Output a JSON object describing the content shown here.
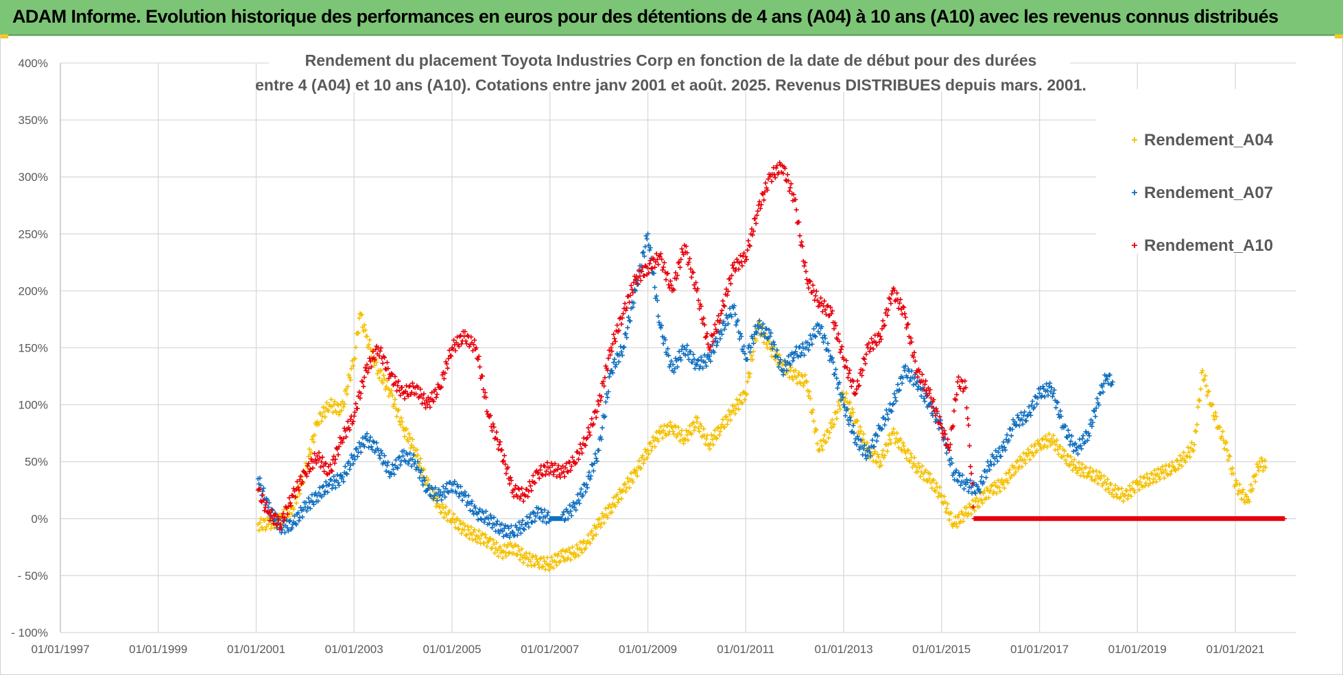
{
  "header": {
    "title": "ADAM Informe. Evolution historique des performances en euros pour des détentions de 4 ans (A04) à 10 ans (A10) avec les revenus connus distribués"
  },
  "chart_data": {
    "type": "scatter",
    "title_line1": "Rendement du placement Toyota Industries Corp en fonction de la date de début pour des durées",
    "title_line2": "entre 4 (A04) et 10 ans (A10). Cotations entre janv 2001 et août. 2025. Revenus DISTRIBUES depuis mars. 2001.",
    "xlabel": "",
    "ylabel": "",
    "xlim": [
      "1997-01-01",
      "2022-04-01"
    ],
    "ylim": [
      -100,
      400
    ],
    "x_ticks": [
      "01/01/1997",
      "01/01/1999",
      "01/01/2001",
      "01/01/2003",
      "01/01/2005",
      "01/01/2007",
      "01/01/2009",
      "01/01/2011",
      "01/01/2013",
      "01/01/2015",
      "01/01/2017",
      "01/01/2019",
      "01/01/2021"
    ],
    "y_ticks": [
      "- 100%",
      "- 50%",
      "0%",
      "50%",
      "100%",
      "150%",
      "200%",
      "250%",
      "300%",
      "350%",
      "400%"
    ],
    "grid": true,
    "legend_position": "top-right",
    "marker": "+",
    "series": [
      {
        "name": "Rendement_A04",
        "color": "#f5c000",
        "points": [
          [
            "2001-01-15",
            -5
          ],
          [
            "2001-04-01",
            -5
          ],
          [
            "2001-07-01",
            0
          ],
          [
            "2001-10-01",
            10
          ],
          [
            "2002-01-01",
            40
          ],
          [
            "2002-04-01",
            85
          ],
          [
            "2002-07-01",
            100
          ],
          [
            "2002-10-01",
            95
          ],
          [
            "2003-01-01",
            140
          ],
          [
            "2003-02-15",
            180
          ],
          [
            "2003-04-01",
            160
          ],
          [
            "2003-07-01",
            130
          ],
          [
            "2003-10-01",
            110
          ],
          [
            "2004-01-01",
            80
          ],
          [
            "2004-04-01",
            60
          ],
          [
            "2004-07-01",
            30
          ],
          [
            "2004-10-01",
            10
          ],
          [
            "2005-01-01",
            0
          ],
          [
            "2005-04-01",
            -10
          ],
          [
            "2005-07-01",
            -15
          ],
          [
            "2005-10-01",
            -20
          ],
          [
            "2006-01-01",
            -30
          ],
          [
            "2006-04-01",
            -25
          ],
          [
            "2006-07-01",
            -35
          ],
          [
            "2006-10-01",
            -38
          ],
          [
            "2007-01-01",
            -40
          ],
          [
            "2007-04-01",
            -33
          ],
          [
            "2007-07-01",
            -30
          ],
          [
            "2007-10-01",
            -22
          ],
          [
            "2008-01-01",
            -5
          ],
          [
            "2008-04-01",
            10
          ],
          [
            "2008-07-01",
            25
          ],
          [
            "2008-10-01",
            40
          ],
          [
            "2009-01-01",
            60
          ],
          [
            "2009-04-01",
            75
          ],
          [
            "2009-07-01",
            80
          ],
          [
            "2009-10-01",
            70
          ],
          [
            "2010-01-01",
            85
          ],
          [
            "2010-04-01",
            65
          ],
          [
            "2010-07-01",
            80
          ],
          [
            "2010-10-01",
            95
          ],
          [
            "2011-01-01",
            110
          ],
          [
            "2011-04-01",
            170
          ],
          [
            "2011-07-01",
            150
          ],
          [
            "2011-10-01",
            135
          ],
          [
            "2012-01-01",
            125
          ],
          [
            "2012-04-01",
            120
          ],
          [
            "2012-07-01",
            60
          ],
          [
            "2012-10-01",
            80
          ],
          [
            "2013-01-01",
            110
          ],
          [
            "2013-04-01",
            85
          ],
          [
            "2013-07-01",
            60
          ],
          [
            "2013-10-01",
            50
          ],
          [
            "2014-01-01",
            75
          ],
          [
            "2014-04-01",
            60
          ],
          [
            "2014-07-01",
            45
          ],
          [
            "2014-10-01",
            35
          ],
          [
            "2015-01-01",
            20
          ],
          [
            "2015-04-01",
            -5
          ],
          [
            "2015-07-01",
            5
          ],
          [
            "2015-10-01",
            15
          ],
          [
            "2016-01-01",
            25
          ],
          [
            "2016-04-01",
            30
          ],
          [
            "2016-07-01",
            45
          ],
          [
            "2016-10-01",
            55
          ],
          [
            "2017-01-01",
            65
          ],
          [
            "2017-04-01",
            70
          ],
          [
            "2017-07-01",
            55
          ],
          [
            "2017-10-01",
            45
          ],
          [
            "2018-01-01",
            40
          ],
          [
            "2018-04-01",
            35
          ],
          [
            "2018-07-01",
            25
          ],
          [
            "2018-10-01",
            20
          ],
          [
            "2019-01-01",
            30
          ],
          [
            "2019-04-01",
            35
          ],
          [
            "2019-07-01",
            40
          ],
          [
            "2019-10-01",
            45
          ],
          [
            "2020-01-01",
            55
          ],
          [
            "2020-03-01",
            65
          ],
          [
            "2020-05-01",
            130
          ],
          [
            "2020-07-01",
            100
          ],
          [
            "2020-09-01",
            80
          ],
          [
            "2020-11-01",
            60
          ],
          [
            "2021-01-01",
            30
          ],
          [
            "2021-04-01",
            15
          ],
          [
            "2021-07-01",
            50
          ],
          [
            "2021-08-15",
            45
          ]
        ]
      },
      {
        "name": "Rendement_A07",
        "color": "#0f6fc0",
        "points": [
          [
            "2001-01-15",
            35
          ],
          [
            "2001-04-01",
            10
          ],
          [
            "2001-07-01",
            -8
          ],
          [
            "2001-10-01",
            -5
          ],
          [
            "2002-01-01",
            10
          ],
          [
            "2002-04-01",
            20
          ],
          [
            "2002-07-01",
            30
          ],
          [
            "2002-10-01",
            35
          ],
          [
            "2003-01-01",
            55
          ],
          [
            "2003-04-01",
            70
          ],
          [
            "2003-07-01",
            60
          ],
          [
            "2003-10-01",
            40
          ],
          [
            "2004-01-01",
            55
          ],
          [
            "2004-04-01",
            50
          ],
          [
            "2004-07-01",
            25
          ],
          [
            "2004-10-01",
            20
          ],
          [
            "2005-01-01",
            30
          ],
          [
            "2005-04-01",
            20
          ],
          [
            "2005-07-01",
            5
          ],
          [
            "2005-10-01",
            0
          ],
          [
            "2006-01-01",
            -10
          ],
          [
            "2006-04-01",
            -12
          ],
          [
            "2006-07-01",
            -5
          ],
          [
            "2006-10-01",
            5
          ],
          [
            "2007-01-01",
            0
          ],
          [
            "2007-04-01",
            0
          ],
          [
            "2007-07-01",
            10
          ],
          [
            "2007-10-01",
            30
          ],
          [
            "2008-01-01",
            60
          ],
          [
            "2008-04-01",
            130
          ],
          [
            "2008-07-01",
            150
          ],
          [
            "2008-10-01",
            200
          ],
          [
            "2009-01-01",
            250
          ],
          [
            "2009-04-01",
            170
          ],
          [
            "2009-07-01",
            130
          ],
          [
            "2009-10-01",
            150
          ],
          [
            "2010-01-01",
            135
          ],
          [
            "2010-04-01",
            140
          ],
          [
            "2010-07-01",
            165
          ],
          [
            "2010-10-01",
            185
          ],
          [
            "2011-01-01",
            140
          ],
          [
            "2011-04-01",
            170
          ],
          [
            "2011-07-01",
            160
          ],
          [
            "2011-10-01",
            130
          ],
          [
            "2012-01-01",
            145
          ],
          [
            "2012-04-01",
            150
          ],
          [
            "2012-07-01",
            170
          ],
          [
            "2012-10-01",
            140
          ],
          [
            "2013-01-01",
            100
          ],
          [
            "2013-04-01",
            70
          ],
          [
            "2013-07-01",
            55
          ],
          [
            "2013-10-01",
            80
          ],
          [
            "2014-01-01",
            100
          ],
          [
            "2014-04-01",
            130
          ],
          [
            "2014-07-01",
            120
          ],
          [
            "2014-10-01",
            100
          ],
          [
            "2015-01-01",
            80
          ],
          [
            "2015-04-01",
            40
          ],
          [
            "2015-07-01",
            30
          ],
          [
            "2015-10-01",
            25
          ],
          [
            "2016-01-01",
            50
          ],
          [
            "2016-04-01",
            60
          ],
          [
            "2016-07-01",
            85
          ],
          [
            "2016-10-01",
            90
          ],
          [
            "2017-01-01",
            110
          ],
          [
            "2017-04-01",
            115
          ],
          [
            "2017-07-01",
            80
          ],
          [
            "2017-10-01",
            60
          ],
          [
            "2018-01-01",
            75
          ],
          [
            "2018-04-01",
            110
          ],
          [
            "2018-05-15",
            125
          ],
          [
            "2018-06-30",
            120
          ]
        ]
      },
      {
        "name": "Rendement_A10",
        "color": "#e8000b",
        "points": [
          [
            "2001-01-15",
            25
          ],
          [
            "2001-04-01",
            5
          ],
          [
            "2001-07-01",
            -5
          ],
          [
            "2001-10-01",
            20
          ],
          [
            "2002-01-01",
            40
          ],
          [
            "2002-04-01",
            55
          ],
          [
            "2002-07-01",
            40
          ],
          [
            "2002-10-01",
            70
          ],
          [
            "2003-01-01",
            90
          ],
          [
            "2003-04-01",
            130
          ],
          [
            "2003-07-01",
            150
          ],
          [
            "2003-10-01",
            125
          ],
          [
            "2004-01-01",
            110
          ],
          [
            "2004-04-01",
            115
          ],
          [
            "2004-07-01",
            100
          ],
          [
            "2004-10-01",
            115
          ],
          [
            "2005-01-01",
            150
          ],
          [
            "2005-04-01",
            160
          ],
          [
            "2005-07-01",
            150
          ],
          [
            "2005-10-01",
            90
          ],
          [
            "2006-01-01",
            60
          ],
          [
            "2006-04-01",
            25
          ],
          [
            "2006-07-01",
            20
          ],
          [
            "2006-10-01",
            40
          ],
          [
            "2007-01-01",
            45
          ],
          [
            "2007-04-01",
            40
          ],
          [
            "2007-07-01",
            50
          ],
          [
            "2007-10-01",
            70
          ],
          [
            "2008-01-01",
            100
          ],
          [
            "2008-04-01",
            150
          ],
          [
            "2008-07-01",
            180
          ],
          [
            "2008-10-01",
            210
          ],
          [
            "2009-01-01",
            220
          ],
          [
            "2009-04-01",
            230
          ],
          [
            "2009-07-01",
            200
          ],
          [
            "2009-10-01",
            240
          ],
          [
            "2010-01-01",
            200
          ],
          [
            "2010-04-01",
            150
          ],
          [
            "2010-07-01",
            180
          ],
          [
            "2010-10-01",
            220
          ],
          [
            "2011-01-01",
            230
          ],
          [
            "2011-04-01",
            270
          ],
          [
            "2011-07-01",
            300
          ],
          [
            "2011-10-01",
            310
          ],
          [
            "2012-01-01",
            280
          ],
          [
            "2012-04-01",
            210
          ],
          [
            "2012-07-01",
            190
          ],
          [
            "2012-10-01",
            180
          ],
          [
            "2013-01-01",
            140
          ],
          [
            "2013-04-01",
            110
          ],
          [
            "2013-07-01",
            150
          ],
          [
            "2013-10-01",
            160
          ],
          [
            "2014-01-01",
            200
          ],
          [
            "2014-04-01",
            180
          ],
          [
            "2014-07-01",
            130
          ],
          [
            "2014-10-01",
            110
          ],
          [
            "2015-01-01",
            80
          ],
          [
            "2015-03-01",
            60
          ],
          [
            "2015-05-01",
            120
          ],
          [
            "2015-07-01",
            115
          ],
          [
            "2015-09-01",
            0
          ],
          [
            "2016-06-01",
            0
          ],
          [
            "2017-06-01",
            0
          ],
          [
            "2018-06-01",
            0
          ],
          [
            "2019-06-01",
            0
          ],
          [
            "2020-06-01",
            0
          ],
          [
            "2021-06-01",
            0
          ],
          [
            "2022-01-01",
            0
          ]
        ]
      }
    ]
  }
}
